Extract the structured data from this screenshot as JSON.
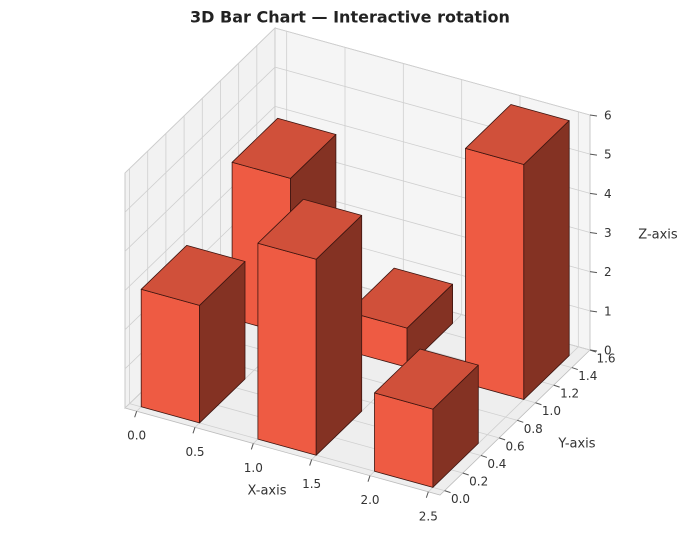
{
  "chart_data": {
    "type": "bar3d",
    "title": "3D Bar Chart — Interactive rotation",
    "xlabel": "X-axis",
    "ylabel": "Y-axis",
    "zlabel": "Z-axis",
    "x": [
      0,
      1,
      2,
      0,
      1,
      2
    ],
    "y": [
      0,
      0,
      0,
      1,
      1,
      1
    ],
    "values": [
      3,
      5,
      2,
      4,
      1,
      6
    ],
    "color": "#ee5b43",
    "xlim": [
      -0.1,
      2.6
    ],
    "ylim": [
      -0.05,
      1.6
    ],
    "zlim": [
      0,
      6
    ],
    "xticks": [
      {
        "value": 0,
        "label": "0.0"
      },
      0.5,
      {
        "value": 1,
        "label": "1.0"
      },
      1.5,
      {
        "value": 2,
        "label": "2.0"
      },
      2.5
    ],
    "yticks": [
      {
        "value": 0,
        "label": "0.0"
      },
      0.2,
      0.4,
      0.6,
      0.8,
      {
        "value": 1,
        "label": "1.0"
      },
      1.2,
      1.4,
      1.6
    ],
    "zticks": [
      0,
      1,
      2,
      3,
      4,
      5,
      6
    ],
    "grid": true
  }
}
